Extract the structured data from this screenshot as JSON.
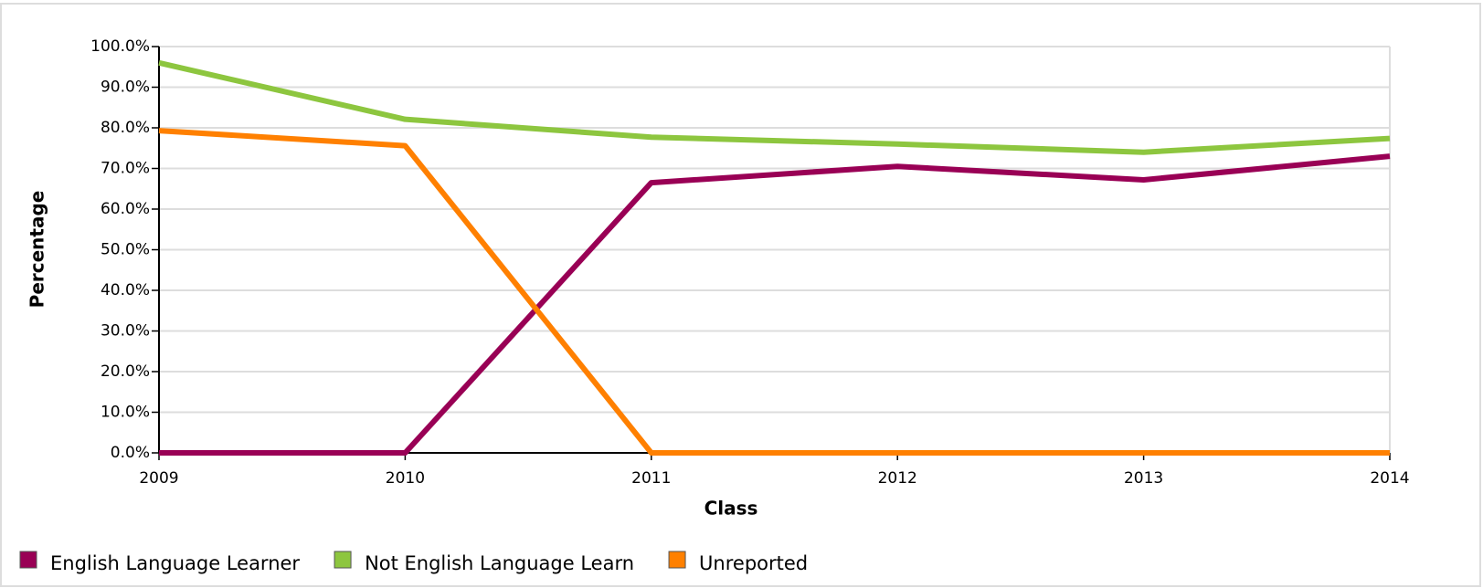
{
  "chart_data": {
    "type": "line",
    "xlabel": "Class",
    "ylabel": "Percentage",
    "categories": [
      "2009",
      "2010",
      "2011",
      "2012",
      "2013",
      "2014"
    ],
    "series": [
      {
        "name": "English Language Learner",
        "color": "#990055",
        "values": [
          0,
          0,
          66.5,
          70.5,
          67.2,
          73.0
        ]
      },
      {
        "name": "Not English Language Learn",
        "color": "#8dc63f",
        "values": [
          96.0,
          82.1,
          77.7,
          76.0,
          74.0,
          77.4
        ]
      },
      {
        "name": "Unreported",
        "color": "#ff8000",
        "values": [
          79.3,
          75.6,
          0,
          0,
          0,
          0
        ]
      }
    ],
    "ylim": [
      0,
      100
    ],
    "yticks": [
      {
        "value": 0,
        "label": "0.0%"
      },
      {
        "value": 10,
        "label": "10.0%"
      },
      {
        "value": 20,
        "label": "20.0%"
      },
      {
        "value": 30,
        "label": "30.0%"
      },
      {
        "value": 40,
        "label": "40.0%"
      },
      {
        "value": 50,
        "label": "50.0%"
      },
      {
        "value": 60,
        "label": "60.0%"
      },
      {
        "value": 70,
        "label": "70.0%"
      },
      {
        "value": 80,
        "label": "80.0%"
      },
      {
        "value": 90,
        "label": "90.0%"
      },
      {
        "value": 100,
        "label": "100.0%"
      }
    ],
    "grid": true,
    "legend": "bottom"
  }
}
